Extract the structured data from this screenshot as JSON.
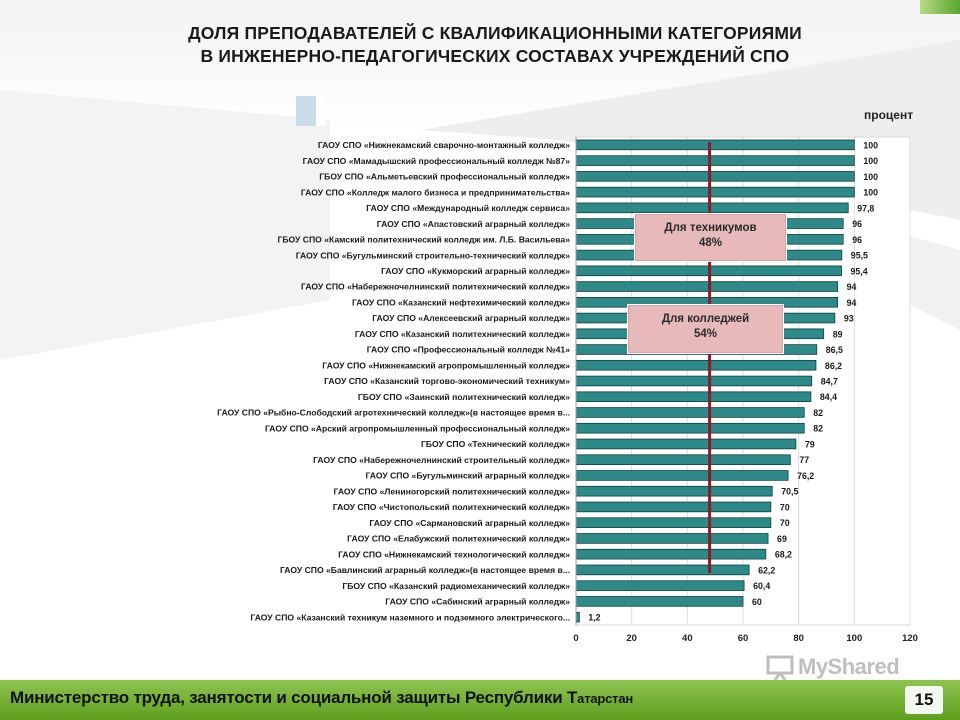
{
  "slide": {
    "title_line1": "ДОЛЯ ПРЕПОДАВАТЕЛЕЙ С КВАЛИФИКАЦИОННЫМИ КАТЕГОРИЯМИ",
    "title_line2": "В ИНЖЕНЕРНО-ПЕДАГОГИЧЕСКИХ СОСТАВАХ УЧРЕЖДЕНИЙ СПО",
    "unit_label": "процент",
    "footer_main": "Министерство труда, занятости и социальной защиты Республики Т",
    "footer_small": "атарстан",
    "page_number": "15",
    "watermark": "MyShared"
  },
  "callouts": {
    "technikum": {
      "label": "Для техникумов",
      "value": "48%"
    },
    "colleges": {
      "label": "Для колледжей",
      "value": "54%"
    }
  },
  "colors": {
    "bar_fill": "#2d8a88",
    "bar_edge": "#0f3f3e",
    "reference_line": "#8b1a2a",
    "callout_fill": "#e7b9bb",
    "footer_green": "#6aaa2a"
  },
  "chart_data": {
    "type": "bar",
    "orientation": "horizontal",
    "title": "ДОЛЯ ПРЕПОДАВАТЕЛЕЙ С КВАЛИФИКАЦИОННЫМИ КАТЕГОРИЯМИ В ИНЖЕНЕРНО-ПЕДАГОГИЧЕСКИХ СОСТАВАХ УЧРЕЖДЕНИЙ СПО",
    "xlabel": "процент",
    "xlim": [
      0,
      120
    ],
    "xticks": [
      0,
      20,
      40,
      60,
      80,
      100,
      120
    ],
    "reference_line_value": 48,
    "categories": [
      "ГАОУ СПО «Нижнекамский сварочно-монтажный колледж»",
      "ГАОУ СПО «Мамадышский профессиональный колледж №87»",
      "ГБОУ СПО «Альметьевский профессиональный колледж»",
      "ГАОУ СПО «Колледж малого бизнеса и предпринимательства»",
      "ГАОУ СПО «Международный колледж сервиса»",
      "ГАОУ СПО «Апастовский аграрный колледж»",
      "ГБОУ СПО «Камский политехнический колледж им. Л.Б. Васильева»",
      "ГАОУ СПО «Бугульминский строительно-технический колледж»",
      "ГАОУ СПО «Кукморский аграрный колледж»",
      "ГАОУ СПО «Набережночелнинский политехнический колледж»",
      "ГАОУ СПО «Казанский нефтехимический колледж»",
      "ГАОУ СПО «Алексеевский аграрный колледж»",
      "ГАОУ СПО «Казанский политехнический колледж»",
      "ГАОУ СПО «Профессиональный колледж №41»",
      "ГАОУ СПО «Нижнекамский агропромышленный колледж»",
      "ГАОУ СПО «Казанский торгово-экономический техникум»",
      "ГБОУ СПО «Заинский политехнический колледж»",
      "ГАОУ СПО «Рыбно-Слободский агротехнический колледж»(в настоящее время в...",
      "ГАОУ СПО «Арский агропромышленный профессиональный колледж»",
      "ГБОУ СПО «Технический колледж»",
      "ГАОУ СПО «Набережночелнинский строительный колледж»",
      "ГАОУ СПО «Бугульминский аграрный колледж»",
      "ГАОУ СПО «Лениногорский политехнический колледж»",
      "ГАОУ СПО «Чистопольский политехнический колледж»",
      "ГАОУ СПО «Сармановский аграрный колледж»",
      "ГАОУ СПО «Елабужский политехнический колледж»",
      "ГАОУ СПО «Нижнекамский технологический колледж»",
      "ГАОУ СПО «Бавлинский аграрный колледж»(в настоящее время в...",
      "ГБОУ СПО «Казанский радиомеханический колледж»",
      "ГАОУ СПО «Сабинский аграрный колледж»",
      "ГАОУ СПО «Казанский техникум наземного и подземного электрического..."
    ],
    "values": [
      100,
      100,
      100,
      100,
      97.8,
      96,
      96,
      95.5,
      95.4,
      94,
      94,
      93,
      89,
      86.5,
      86.2,
      84.7,
      84.4,
      82,
      82,
      79,
      77,
      76.2,
      70.5,
      70,
      70,
      69,
      68.2,
      62.2,
      60.4,
      60,
      1.2
    ],
    "value_labels": [
      "100",
      "100",
      "100",
      "100",
      "97,8",
      "96",
      "96",
      "95,5",
      "95,4",
      "94",
      "94",
      "93",
      "89",
      "86,5",
      "86,2",
      "84,7",
      "84,4",
      "82",
      "82",
      "79",
      "77",
      "76,2",
      "70,5",
      "70",
      "70",
      "69",
      "68,2",
      "62,2",
      "60,4",
      "60",
      "1,2"
    ]
  }
}
